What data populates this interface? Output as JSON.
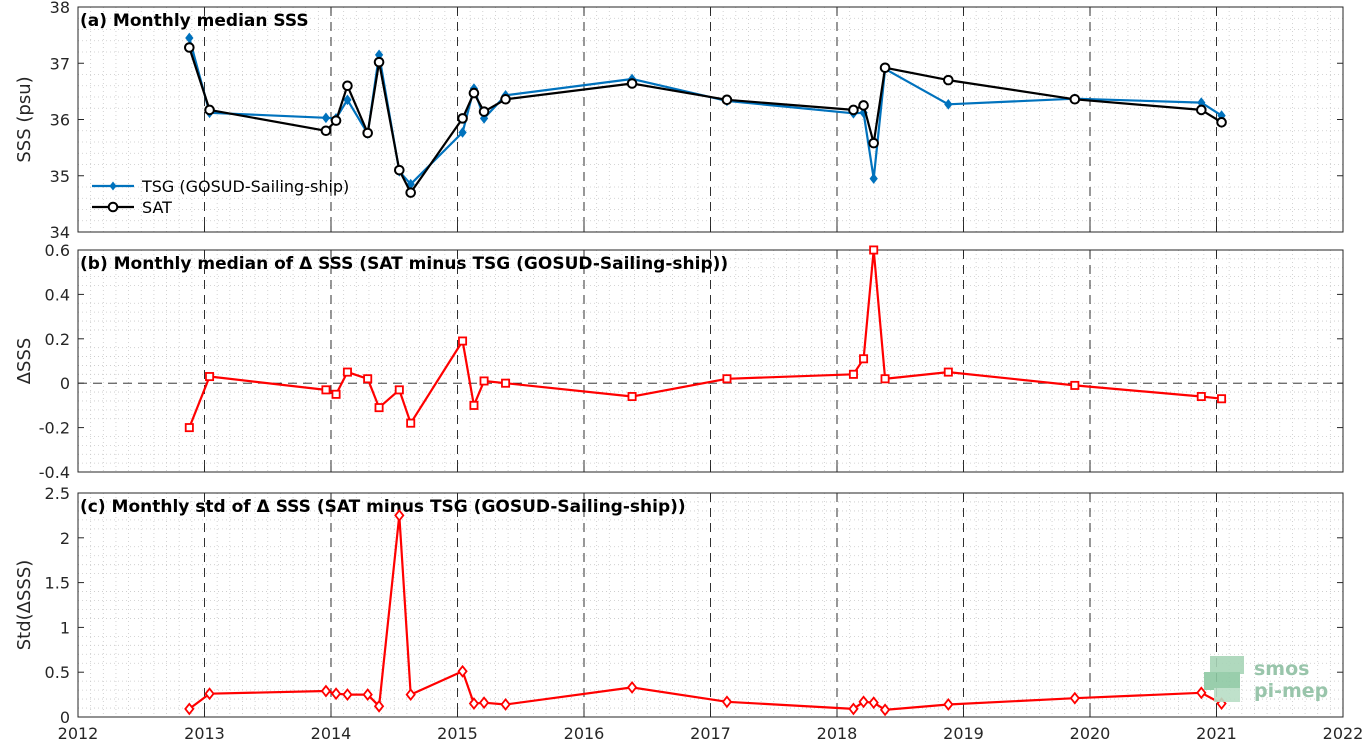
{
  "chart_data": [
    {
      "type": "line",
      "title": "(a) Monthly median SSS",
      "ylabel": "SSS (psu)",
      "xlim": [
        2012,
        2022
      ],
      "ylim": [
        34,
        38
      ],
      "xticks": [
        "2012",
        "2013",
        "2014",
        "2015",
        "2016",
        "2017",
        "2018",
        "2019",
        "2020",
        "2021",
        "2022"
      ],
      "yticks": [
        "34",
        "35",
        "36",
        "37",
        "38"
      ],
      "grid": true,
      "legend_position": "bottom-left",
      "series": [
        {
          "name": "TSG (GOSUD-Sailing-ship)",
          "color": "#0072bd",
          "marker": "diamond-filled",
          "x": [
            2012.88,
            2013.04,
            2013.96,
            2014.04,
            2014.13,
            2014.29,
            2014.38,
            2014.54,
            2014.63,
            2015.04,
            2015.13,
            2015.21,
            2015.38,
            2016.38,
            2017.13,
            2018.13,
            2018.21,
            2018.29,
            2018.38,
            2018.88,
            2019.88,
            2020.88,
            2021.04
          ],
          "y": [
            37.45,
            36.12,
            36.03,
            36.02,
            36.35,
            35.75,
            37.15,
            35.08,
            34.85,
            35.77,
            36.55,
            36.02,
            36.43,
            36.72,
            36.33,
            36.11,
            36.12,
            34.95,
            36.9,
            36.27,
            36.37,
            36.3,
            36.07
          ]
        },
        {
          "name": "SAT",
          "color": "#000000",
          "marker": "circle-open",
          "x": [
            2012.88,
            2013.04,
            2013.96,
            2014.04,
            2014.13,
            2014.29,
            2014.38,
            2014.54,
            2014.63,
            2015.04,
            2015.13,
            2015.21,
            2015.38,
            2016.38,
            2017.13,
            2018.13,
            2018.21,
            2018.29,
            2018.38,
            2018.88,
            2019.88,
            2020.88,
            2021.04
          ],
          "y": [
            37.28,
            36.17,
            35.8,
            35.98,
            36.6,
            35.76,
            37.02,
            35.1,
            34.7,
            36.02,
            36.47,
            36.14,
            36.36,
            36.64,
            36.35,
            36.17,
            36.25,
            35.58,
            36.92,
            36.7,
            36.36,
            36.17,
            35.95
          ]
        }
      ]
    },
    {
      "type": "line",
      "title": "(b) Monthly median of Δ SSS (SAT minus TSG (GOSUD-Sailing-ship))",
      "ylabel": "ΔSSS",
      "xlim": [
        2012,
        2022
      ],
      "ylim": [
        -0.4,
        0.6
      ],
      "xticks": [
        "2012",
        "2013",
        "2014",
        "2015",
        "2016",
        "2017",
        "2018",
        "2019",
        "2020",
        "2021",
        "2022"
      ],
      "yticks": [
        "-0.4",
        "-0.2",
        "0",
        "0.2",
        "0.4",
        "0.6"
      ],
      "grid": true,
      "zero_line": true,
      "series": [
        {
          "name": "",
          "color": "#ff0000",
          "marker": "square-open",
          "x": [
            2012.88,
            2013.04,
            2013.96,
            2014.04,
            2014.13,
            2014.29,
            2014.38,
            2014.54,
            2014.63,
            2015.04,
            2015.13,
            2015.21,
            2015.38,
            2016.38,
            2017.13,
            2018.13,
            2018.21,
            2018.29,
            2018.38,
            2018.88,
            2019.88,
            2020.88,
            2021.04
          ],
          "y": [
            -0.2,
            0.03,
            -0.03,
            -0.05,
            0.05,
            0.02,
            -0.11,
            -0.03,
            -0.18,
            0.19,
            -0.1,
            0.01,
            0.0,
            -0.06,
            0.02,
            0.04,
            0.11,
            0.6,
            0.02,
            0.05,
            -0.01,
            -0.06,
            -0.07
          ]
        }
      ]
    },
    {
      "type": "line",
      "title": "(c) Monthly std of Δ SSS (SAT minus TSG (GOSUD-Sailing-ship))",
      "ylabel": "Std(ΔSSS)",
      "xlim": [
        2012,
        2022
      ],
      "ylim": [
        0,
        2.5
      ],
      "xticks": [
        "2012",
        "2013",
        "2014",
        "2015",
        "2016",
        "2017",
        "2018",
        "2019",
        "2020",
        "2021",
        "2022"
      ],
      "yticks": [
        "0",
        "0.5",
        "1",
        "1.5",
        "2",
        "2.5"
      ],
      "grid": true,
      "series": [
        {
          "name": "",
          "color": "#ff0000",
          "marker": "diamond-open",
          "x": [
            2012.88,
            2013.04,
            2013.96,
            2014.04,
            2014.13,
            2014.29,
            2014.38,
            2014.54,
            2014.63,
            2015.04,
            2015.13,
            2015.21,
            2015.38,
            2016.38,
            2017.13,
            2018.13,
            2018.21,
            2018.29,
            2018.38,
            2018.88,
            2019.88,
            2020.88,
            2021.04
          ],
          "y": [
            0.09,
            0.26,
            0.29,
            0.26,
            0.25,
            0.25,
            0.12,
            2.25,
            0.25,
            0.51,
            0.15,
            0.16,
            0.14,
            0.33,
            0.17,
            0.09,
            0.17,
            0.16,
            0.08,
            0.14,
            0.21,
            0.27,
            0.15
          ]
        }
      ]
    }
  ],
  "logo": {
    "line1": "smos",
    "line2": "pi-mep"
  }
}
